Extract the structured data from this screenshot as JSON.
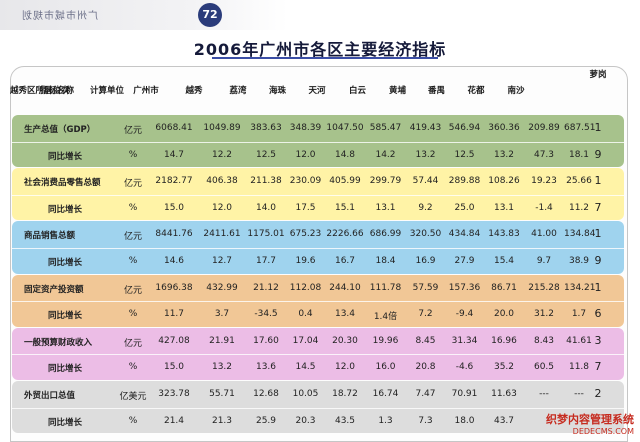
{
  "header": {
    "page_number": "72",
    "running_head": "广州市城市规划",
    "title": "2006年广州市各区主要经济指标"
  },
  "table": {
    "columns": [
      "指标名称",
      "计算单位",
      "广州市",
      "越秀",
      "荔湾",
      "海珠",
      "天河",
      "白云",
      "黄埔",
      "番禺",
      "花都",
      "南沙",
      "萝岗",
      "越秀区所居位次"
    ],
    "rows": [
      {
        "name": "生产总值（GDP）",
        "unit": "亿元",
        "values": [
          "6068.41",
          "1049.89",
          "383.63",
          "348.39",
          "1047.50",
          "585.47",
          "419.43",
          "546.94",
          "360.36",
          "209.89",
          "687.51",
          "1"
        ]
      },
      {
        "name": "同比增长",
        "unit": "%",
        "values": [
          "14.7",
          "12.2",
          "12.5",
          "12.0",
          "14.8",
          "14.2",
          "13.2",
          "12.5",
          "13.2",
          "47.3",
          "18.1",
          "9"
        ]
      },
      {
        "name": "社会消费品零售总额",
        "unit": "亿元",
        "values": [
          "2182.77",
          "406.38",
          "211.38",
          "230.09",
          "405.99",
          "299.79",
          "57.44",
          "289.88",
          "108.26",
          "19.23",
          "25.66",
          "1"
        ]
      },
      {
        "name": "同比增长",
        "unit": "%",
        "values": [
          "15.0",
          "12.0",
          "14.0",
          "17.5",
          "15.1",
          "13.1",
          "9.2",
          "25.0",
          "13.1",
          "-1.4",
          "11.2",
          "7"
        ]
      },
      {
        "name": "商品销售总额",
        "unit": "亿元",
        "values": [
          "8441.76",
          "2411.61",
          "1175.01",
          "675.23",
          "2226.66",
          "686.99",
          "320.50",
          "434.84",
          "143.83",
          "41.00",
          "134.84",
          "1"
        ]
      },
      {
        "name": "同比增长",
        "unit": "%",
        "values": [
          "14.6",
          "12.7",
          "17.7",
          "19.6",
          "16.7",
          "18.4",
          "16.9",
          "27.9",
          "15.4",
          "9.7",
          "38.9",
          "9"
        ]
      },
      {
        "name": "固定资产投资额",
        "unit": "亿元",
        "values": [
          "1696.38",
          "432.99",
          "21.12",
          "112.08",
          "244.10",
          "111.78",
          "57.59",
          "157.36",
          "86.71",
          "215.28",
          "134.21",
          "1"
        ]
      },
      {
        "name": "同比增长",
        "unit": "%",
        "values": [
          "11.7",
          "3.7",
          "-34.5",
          "0.4",
          "13.4",
          "1.4倍",
          "7.2",
          "-9.4",
          "20.0",
          "31.2",
          "1.7",
          "6"
        ]
      },
      {
        "name": "一般预算财政收入",
        "unit": "亿元",
        "values": [
          "427.08",
          "21.91",
          "17.60",
          "17.04",
          "20.30",
          "19.96",
          "8.45",
          "31.34",
          "16.96",
          "8.43",
          "41.61",
          "3"
        ]
      },
      {
        "name": "同比增长",
        "unit": "%",
        "values": [
          "15.0",
          "13.2",
          "13.6",
          "14.5",
          "12.0",
          "16.0",
          "20.8",
          "-4.6",
          "35.2",
          "60.5",
          "11.8",
          "7"
        ]
      },
      {
        "name": "外贸出口总值",
        "unit": "亿美元",
        "values": [
          "323.78",
          "55.71",
          "12.68",
          "10.05",
          "18.72",
          "16.74",
          "7.47",
          "70.91",
          "11.63",
          "---",
          "---",
          "2"
        ]
      },
      {
        "name": "同比增长",
        "unit": "%",
        "values": [
          "21.4",
          "21.3",
          "25.9",
          "20.3",
          "43.5",
          "1.3",
          "7.3",
          "18.0",
          "43.7",
          "",
          "",
          ""
        ]
      }
    ]
  },
  "bands": [
    {
      "group": "GDP",
      "color": "#a7c28c"
    },
    {
      "group": "零售",
      "color": "#fff3a6"
    },
    {
      "group": "商品销售",
      "color": "#9fd3ee"
    },
    {
      "group": "固定资产",
      "color": "#f1c796"
    },
    {
      "group": "财政收入",
      "color": "#ecbde6"
    },
    {
      "group": "外贸",
      "color": "#dddddd"
    }
  ],
  "watermark": {
    "line1": "织梦内容管理系统",
    "line2": "DEDECMS.COM"
  }
}
